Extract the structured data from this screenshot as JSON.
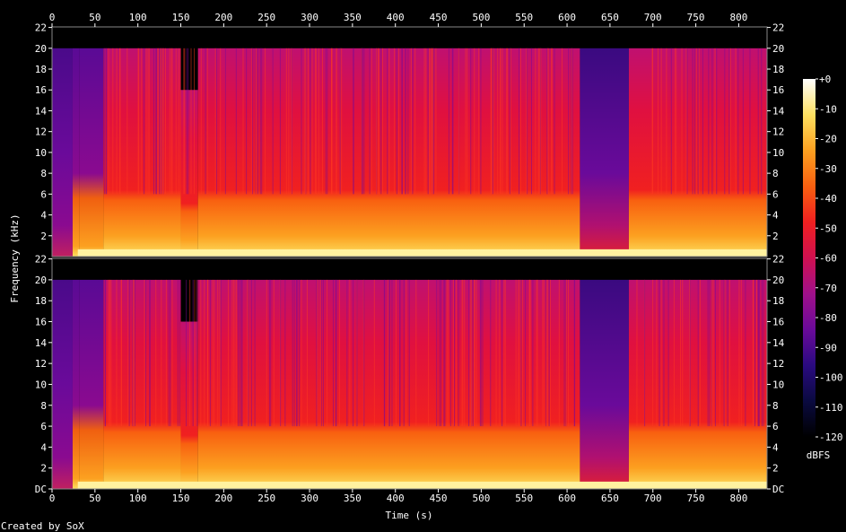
{
  "chart_data": {
    "type": "heatmap",
    "title": "",
    "xlabel": "Time (s)",
    "ylabel": "Frequency (kHz)",
    "xlim": [
      0,
      833
    ],
    "ylim_khz": [
      0,
      22.05
    ],
    "x_ticks": [
      0,
      50,
      100,
      150,
      200,
      250,
      300,
      350,
      400,
      450,
      500,
      550,
      600,
      650,
      700,
      750,
      800
    ],
    "y_ticks": [
      "DC",
      "2",
      "4",
      "6",
      "8",
      "10",
      "12",
      "14",
      "16",
      "18",
      "20",
      "22"
    ],
    "channels": 2,
    "colorbar": {
      "label": "dBFS",
      "ticks": [
        "+0",
        "-10",
        "-20",
        "-30",
        "-40",
        "-50",
        "-60",
        "-70",
        "-80",
        "-90",
        "-100",
        "-110",
        "-120"
      ],
      "range_db": [
        -120,
        0
      ],
      "colors": [
        "#000000",
        "#0a0a40",
        "#2a0a80",
        "#6a0a9a",
        "#a0108a",
        "#d01050",
        "#f02020",
        "#f86010",
        "#fca020",
        "#fde060",
        "#ffffff"
      ]
    },
    "sections": [
      {
        "start": 0,
        "end": 24,
        "level": "low",
        "cutoff_khz": 20
      },
      {
        "start": 24,
        "end": 32,
        "level": "fade-in",
        "cutoff_khz": 20
      },
      {
        "start": 32,
        "end": 60,
        "level": "mid",
        "cutoff_khz": 20
      },
      {
        "start": 60,
        "end": 150,
        "level": "high",
        "cutoff_khz": 20
      },
      {
        "start": 150,
        "end": 170,
        "level": "high",
        "cutoff_khz": 16
      },
      {
        "start": 170,
        "end": 615,
        "level": "high",
        "cutoff_khz": 20
      },
      {
        "start": 615,
        "end": 672,
        "level": "quiet",
        "cutoff_khz": 20
      },
      {
        "start": 672,
        "end": 833,
        "level": "high",
        "cutoff_khz": 20
      }
    ]
  },
  "footer": {
    "credit": "Created by SoX"
  }
}
